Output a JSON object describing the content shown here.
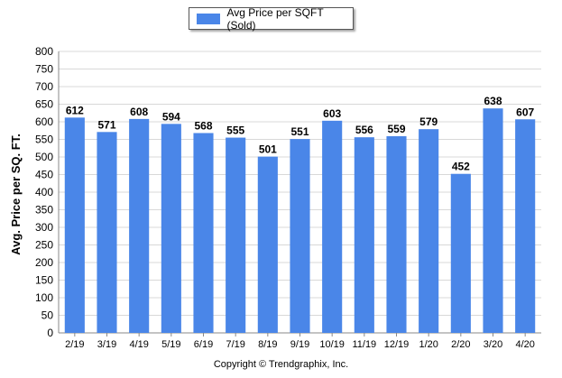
{
  "legend": {
    "label": "Avg Price per SQFT (Sold)"
  },
  "copyright": "Copyright © Trendgraphix, Inc.",
  "chart_data": {
    "type": "bar",
    "title": "",
    "xlabel": "",
    "ylabel": "Avg. Price per SQ. FT.",
    "ylim": [
      0,
      800
    ],
    "yticks": [
      0,
      50,
      100,
      150,
      200,
      250,
      300,
      350,
      400,
      450,
      500,
      550,
      600,
      650,
      700,
      750,
      800
    ],
    "grid": true,
    "legend_position": "top-center",
    "bar_color": "#4a86e8",
    "categories": [
      "2/19",
      "3/19",
      "4/19",
      "5/19",
      "6/19",
      "7/19",
      "8/19",
      "9/19",
      "10/19",
      "11/19",
      "12/19",
      "1/20",
      "2/20",
      "3/20",
      "4/20"
    ],
    "series": [
      {
        "name": "Avg Price per SQFT (Sold)",
        "values": [
          612,
          571,
          608,
          594,
          568,
          555,
          501,
          551,
          603,
          556,
          559,
          579,
          452,
          638,
          607
        ]
      }
    ]
  }
}
